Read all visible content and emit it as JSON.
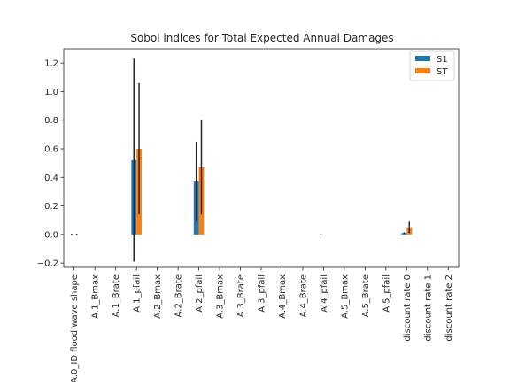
{
  "chart_data": {
    "type": "bar",
    "title": "Sobol indices for Total Expected Annual Damages",
    "xlabel": "",
    "ylabel": "",
    "ylim": [
      -0.23,
      1.3
    ],
    "yticks": [
      -0.2,
      0.0,
      0.2,
      0.4,
      0.6,
      0.8,
      1.0,
      1.2
    ],
    "ytick_labels": [
      "−0.2",
      "0.0",
      "0.2",
      "0.4",
      "0.6",
      "0.8",
      "1.0",
      "1.2"
    ],
    "grid": false,
    "legend_position": "top-right",
    "categories": [
      "A.0_ID flood wave shape",
      "A.1_Bmax",
      "A.1_Brate",
      "A.1_pfail",
      "A.2_Bmax",
      "A.2_Brate",
      "A.2_pfail",
      "A.3_Bmax",
      "A.3_Brate",
      "A.3_pfail",
      "A.4_Bmax",
      "A.4_Brate",
      "A.4_pfail",
      "A.5_Bmax",
      "A.5_Brate",
      "A.5_pfail",
      "discount rate 0",
      "discount rate 1",
      "discount rate 2"
    ],
    "series": [
      {
        "name": "S1",
        "color": "#1f77b4",
        "values": [
          0.0,
          0.0,
          0.0,
          0.52,
          0.0,
          0.0,
          0.37,
          0.0,
          0.0,
          0.0,
          0.0,
          0.0,
          0.0,
          0.0,
          0.0,
          0.0,
          0.01,
          0.0,
          0.0
        ],
        "conf": [
          0.005,
          0.0,
          0.0,
          0.71,
          0.0,
          0.0,
          0.28,
          0.0,
          0.0,
          0.0,
          0.0,
          0.0,
          0.005,
          0.0,
          0.0,
          0.0,
          0.005,
          0.0,
          0.0
        ]
      },
      {
        "name": "ST",
        "color": "#ff7f0e",
        "values": [
          0.0,
          0.0,
          0.0,
          0.6,
          0.0,
          0.0,
          0.47,
          0.0,
          0.0,
          0.0,
          0.0,
          0.0,
          0.0,
          0.0,
          0.0,
          0.0,
          0.05,
          0.0,
          0.0
        ],
        "conf": [
          0.005,
          0.0,
          0.0,
          0.46,
          0.0,
          0.0,
          0.33,
          0.0,
          0.0,
          0.0,
          0.0,
          0.0,
          0.0,
          0.0,
          0.0,
          0.0,
          0.04,
          0.0,
          0.0
        ]
      }
    ]
  }
}
